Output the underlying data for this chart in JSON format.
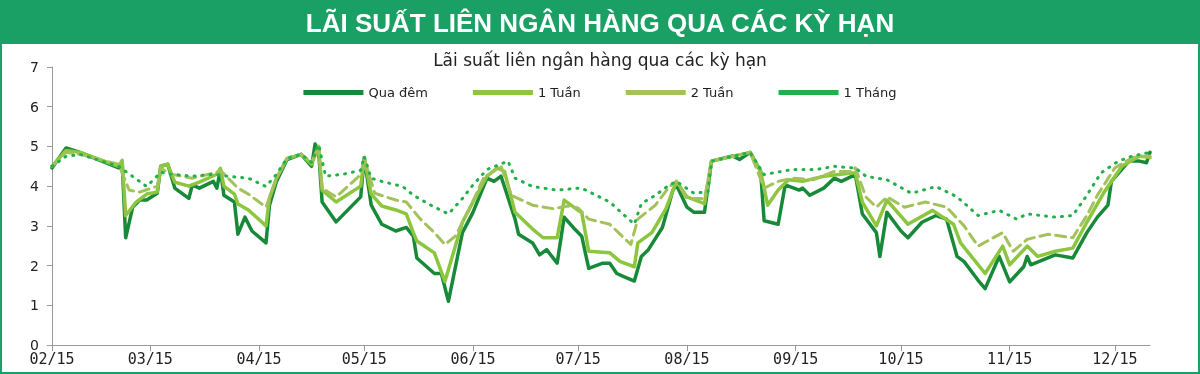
{
  "chart_data": {
    "type": "line",
    "title": "LÃI SUẤT LIÊN NGÂN HÀNG QUA CÁC KỲ HẠN",
    "subtitle": "Lãi suất liên ngân hàng qua các kỳ hạn",
    "xlim": [
      "--02-15",
      "--12-25"
    ],
    "xticks": [
      {
        "value": "--02-15",
        "label": "02/15"
      },
      {
        "value": "--03-15",
        "label": "03/15"
      },
      {
        "value": "--04-15",
        "label": "04/15"
      },
      {
        "value": "--05-15",
        "label": "05/15"
      },
      {
        "value": "--06-15",
        "label": "06/15"
      },
      {
        "value": "--07-15",
        "label": "07/15"
      },
      {
        "value": "--08-15",
        "label": "08/15"
      },
      {
        "value": "--09-15",
        "label": "09/15"
      },
      {
        "value": "--10-15",
        "label": "10/15"
      },
      {
        "value": "--11-15",
        "label": "11/15"
      },
      {
        "value": "--12-15",
        "label": "12/15"
      }
    ],
    "ylim": [
      0,
      7
    ],
    "yticks": [
      0,
      1,
      2,
      3,
      4,
      5,
      6,
      7
    ],
    "grid": false,
    "legend": "top",
    "marker": "none",
    "series": [
      {
        "name": "Qua đêm",
        "color": "#178a3a",
        "line_style": "solid",
        "x": [
          "--02-15",
          "--02-19",
          "--02-23",
          "--03-06",
          "--03-07",
          "--03-08",
          "--03-10",
          "--03-12",
          "--03-14",
          "--03-17",
          "--03-18",
          "--03-20",
          "--03-22",
          "--03-26",
          "--03-27",
          "--03-29",
          "--04-02",
          "--04-03",
          "--04-04",
          "--04-05",
          "--04-08",
          "--04-09",
          "--04-11",
          "--04-13",
          "--04-17",
          "--04-18",
          "--04-20",
          "--04-23",
          "--04-27",
          "--04-30",
          "--05-01",
          "--05-02",
          "--05-03",
          "--05-07",
          "--05-14",
          "--05-15",
          "--05-17",
          "--05-20",
          "--05-24",
          "--05-27",
          "--05-29",
          "--05-30",
          "--06-04",
          "--06-06",
          "--06-08",
          "--06-12",
          "--06-15",
          "--06-19",
          "--06-21",
          "--06-23",
          "--06-27",
          "--06-28",
          "--07-02",
          "--07-04",
          "--07-06",
          "--07-09",
          "--07-11",
          "--07-14",
          "--07-16",
          "--07-18",
          "--07-22",
          "--07-24",
          "--07-26",
          "--07-28",
          "--07-31",
          "--08-02",
          "--08-04",
          "--08-08",
          "--08-11",
          "--08-12",
          "--08-15",
          "--08-17",
          "--08-20",
          "--08-22",
          "--08-28",
          "--08-30",
          "--09-02",
          "--09-05",
          "--09-06",
          "--09-10",
          "--09-12",
          "--09-16",
          "--09-17",
          "--09-19",
          "--09-23",
          "--09-26",
          "--09-28",
          "--10-02",
          "--10-04",
          "--10-08",
          "--10-09",
          "--10-11",
          "--10-15",
          "--10-17",
          "--10-21",
          "--10-25",
          "--10-28",
          "--10-31",
          "--11-02",
          "--11-06",
          "--11-08",
          "--11-12",
          "--11-15",
          "--11-19",
          "--11-20",
          "--11-21",
          "--11-28",
          "--12-03",
          "--12-07",
          "--12-10",
          "--12-13",
          "--12-14",
          "--12-19",
          "--12-22",
          "--12-24",
          "--12-25"
        ],
        "values": [
          4.46,
          4.96,
          4.85,
          4.46,
          4.6,
          2.7,
          3.47,
          3.65,
          3.65,
          3.82,
          4.5,
          4.55,
          3.95,
          3.69,
          4.03,
          3.95,
          4.12,
          3.95,
          4.42,
          3.77,
          3.6,
          2.79,
          3.22,
          2.87,
          2.57,
          3.52,
          4.12,
          4.67,
          4.8,
          4.5,
          5.06,
          4.89,
          3.6,
          3.1,
          3.73,
          4.72,
          3.52,
          3.04,
          2.87,
          2.96,
          2.74,
          2.19,
          1.8,
          1.8,
          1.1,
          2.83,
          3.34,
          4.2,
          4.12,
          4.25,
          3.17,
          2.79,
          2.57,
          2.27,
          2.4,
          2.06,
          3.22,
          2.92,
          2.74,
          1.93,
          2.06,
          2.06,
          1.8,
          1.72,
          1.61,
          2.23,
          2.4,
          2.96,
          3.9,
          4.03,
          3.47,
          3.34,
          3.34,
          4.63,
          4.76,
          4.67,
          4.85,
          4.37,
          3.13,
          3.04,
          4.03,
          3.9,
          3.95,
          3.77,
          3.95,
          4.2,
          4.12,
          4.29,
          3.3,
          2.83,
          2.23,
          3.34,
          2.87,
          2.7,
          3.09,
          3.26,
          3.17,
          2.23,
          2.1,
          1.63,
          1.42,
          2.23,
          1.59,
          1.97,
          2.23,
          2.02,
          2.27,
          2.19,
          2.83,
          3.22,
          3.52,
          4.12,
          4.63,
          4.63,
          4.59,
          4.85
        ]
      },
      {
        "name": "1 Tuần",
        "color": "#8cc63f",
        "line_style": "solid",
        "x": [
          "--02-15",
          "--02-19",
          "--02-23",
          "--03-06",
          "--03-07",
          "--03-08",
          "--03-11",
          "--03-14",
          "--03-17",
          "--03-18",
          "--03-20",
          "--03-22",
          "--03-26",
          "--03-29",
          "--04-03",
          "--04-04",
          "--04-05",
          "--04-08",
          "--04-09",
          "--04-12",
          "--04-17",
          "--04-18",
          "--04-20",
          "--04-23",
          "--04-27",
          "--04-30",
          "--05-02",
          "--05-03",
          "--05-07",
          "--05-14",
          "--05-15",
          "--05-17",
          "--05-20",
          "--05-24",
          "--05-27",
          "--05-29",
          "--05-30",
          "--06-04",
          "--06-07",
          "--06-12",
          "--06-15",
          "--06-19",
          "--06-22",
          "--06-24",
          "--06-27",
          "--07-02",
          "--07-05",
          "--07-09",
          "--07-11",
          "--07-15",
          "--07-16",
          "--07-18",
          "--07-24",
          "--07-27",
          "--07-31",
          "--08-01",
          "--08-05",
          "--08-09",
          "--08-12",
          "--08-15",
          "--08-20",
          "--08-22",
          "--09-02",
          "--09-05",
          "--09-07",
          "--09-10",
          "--09-13",
          "--09-17",
          "--09-23",
          "--10-01",
          "--10-02",
          "--10-04",
          "--10-08",
          "--10-11",
          "--10-17",
          "--10-24",
          "--10-30",
          "--11-01",
          "--11-08",
          "--11-13",
          "--11-15",
          "--11-20",
          "--11-23",
          "--11-28",
          "--12-03",
          "--12-07",
          "--12-12",
          "--12-17",
          "--12-22",
          "--12-25"
        ],
        "values": [
          4.5,
          4.9,
          4.85,
          4.5,
          4.65,
          3.26,
          3.6,
          3.8,
          3.85,
          4.5,
          4.55,
          4.1,
          4.0,
          4.1,
          4.3,
          4.45,
          4.0,
          3.8,
          3.55,
          3.4,
          3.0,
          3.7,
          4.2,
          4.7,
          4.8,
          4.55,
          5.0,
          3.9,
          3.6,
          4.0,
          4.7,
          3.8,
          3.5,
          3.4,
          3.3,
          2.83,
          2.62,
          2.32,
          1.6,
          3.09,
          3.6,
          4.25,
          4.46,
          4.37,
          3.34,
          2.92,
          2.7,
          2.7,
          3.65,
          3.39,
          3.34,
          2.36,
          2.32,
          2.1,
          1.97,
          2.57,
          2.83,
          3.43,
          4.12,
          3.73,
          3.56,
          4.63,
          4.85,
          4.37,
          3.52,
          3.9,
          4.16,
          4.12,
          4.25,
          4.33,
          4.33,
          3.6,
          3.0,
          3.65,
          3.04,
          3.39,
          3.04,
          2.57,
          1.8,
          2.49,
          2.02,
          2.49,
          2.23,
          2.36,
          2.44,
          3.09,
          3.86,
          4.5,
          4.76,
          4.72
        ]
      },
      {
        "name": "2 Tuần",
        "color": "#a3c25c",
        "line_style": "dashed",
        "x": [
          "--02-15",
          "--02-19",
          "--02-23",
          "--03-06",
          "--03-09",
          "--03-12",
          "--03-17",
          "--03-18",
          "--03-21",
          "--03-27",
          "--04-03",
          "--04-04",
          "--04-09",
          "--04-12",
          "--04-17",
          "--04-20",
          "--04-23",
          "--04-27",
          "--04-30",
          "--05-02",
          "--05-03",
          "--05-07",
          "--05-14",
          "--05-15",
          "--05-18",
          "--05-24",
          "--05-27",
          "--05-31",
          "--06-04",
          "--06-07",
          "--06-10",
          "--06-14",
          "--06-18",
          "--06-23",
          "--06-26",
          "--07-02",
          "--07-08",
          "--07-12",
          "--07-15",
          "--07-18",
          "--07-24",
          "--07-30",
          "--08-01",
          "--08-06",
          "--08-10",
          "--08-12",
          "--08-15",
          "--08-20",
          "--08-22",
          "--09-02",
          "--09-06",
          "--09-10",
          "--09-14",
          "--09-20",
          "--09-26",
          "--10-01",
          "--10-02",
          "--10-05",
          "--10-08",
          "--10-11",
          "--10-16",
          "--10-22",
          "--10-28",
          "--11-02",
          "--11-06",
          "--11-13",
          "--11-16",
          "--11-20",
          "--11-26",
          "--12-03",
          "--12-07",
          "--12-10",
          "--12-15",
          "--12-20",
          "--12-25"
        ],
        "values": [
          4.5,
          4.85,
          4.8,
          4.55,
          3.9,
          3.85,
          4.0,
          4.45,
          4.3,
          4.2,
          4.35,
          4.4,
          3.95,
          3.8,
          3.47,
          4.2,
          4.7,
          4.8,
          4.6,
          5.0,
          3.95,
          3.73,
          4.29,
          4.7,
          3.82,
          3.65,
          3.6,
          3.17,
          2.83,
          2.53,
          2.74,
          3.43,
          4.2,
          4.5,
          3.77,
          3.52,
          3.43,
          3.5,
          3.45,
          3.17,
          3.04,
          2.53,
          3.17,
          3.52,
          3.99,
          4.12,
          3.69,
          3.69,
          4.63,
          4.85,
          3.95,
          4.12,
          4.2,
          4.16,
          4.37,
          4.37,
          4.46,
          3.73,
          3.47,
          3.73,
          3.47,
          3.6,
          3.47,
          3.0,
          2.49,
          2.83,
          2.36,
          2.66,
          2.79,
          2.7,
          3.26,
          3.77,
          4.46,
          4.72,
          4.76
        ]
      },
      {
        "name": "1 Tháng",
        "color": "#22b04b",
        "line_style": "dotted",
        "x": [
          "--02-15",
          "--02-19",
          "--02-23",
          "--03-06",
          "--03-08",
          "--03-14",
          "--03-18",
          "--03-21",
          "--03-27",
          "--04-02",
          "--04-06",
          "--04-12",
          "--04-17",
          "--04-20",
          "--04-23",
          "--04-27",
          "--04-30",
          "--05-02",
          "--05-04",
          "--05-09",
          "--05-14",
          "--05-15",
          "--05-17",
          "--05-20",
          "--05-26",
          "--05-29",
          "--06-03",
          "--06-08",
          "--06-12",
          "--06-15",
          "--06-19",
          "--06-25",
          "--06-27",
          "--07-02",
          "--07-09",
          "--07-15",
          "--07-16",
          "--07-24",
          "--07-31",
          "--08-02",
          "--08-06",
          "--08-10",
          "--08-12",
          "--08-17",
          "--08-21",
          "--08-22",
          "--09-02",
          "--09-06",
          "--09-14",
          "--09-21",
          "--09-26",
          "--10-01",
          "--10-02",
          "--10-05",
          "--10-11",
          "--10-18",
          "--10-25",
          "--10-31",
          "--11-06",
          "--11-12",
          "--11-17",
          "--11-20",
          "--11-28",
          "--12-03",
          "--12-07",
          "--12-11",
          "--12-16",
          "--12-20",
          "--12-25"
        ],
        "values": [
          4.5,
          4.75,
          4.8,
          4.5,
          4.37,
          3.99,
          4.35,
          4.3,
          4.25,
          4.3,
          4.25,
          4.2,
          3.99,
          4.3,
          4.7,
          4.8,
          4.6,
          5.05,
          4.25,
          4.3,
          4.4,
          4.75,
          4.2,
          4.12,
          3.99,
          3.77,
          3.52,
          3.3,
          3.69,
          4.03,
          4.42,
          4.63,
          4.2,
          3.99,
          3.9,
          3.95,
          3.95,
          3.6,
          3.04,
          3.56,
          3.77,
          4.03,
          4.12,
          3.82,
          3.86,
          4.63,
          4.85,
          4.29,
          4.42,
          4.42,
          4.5,
          4.46,
          4.46,
          4.25,
          4.16,
          3.82,
          3.99,
          3.73,
          3.26,
          3.39,
          3.17,
          3.3,
          3.22,
          3.26,
          3.77,
          4.33,
          4.63,
          4.76,
          4.85
        ]
      }
    ]
  }
}
